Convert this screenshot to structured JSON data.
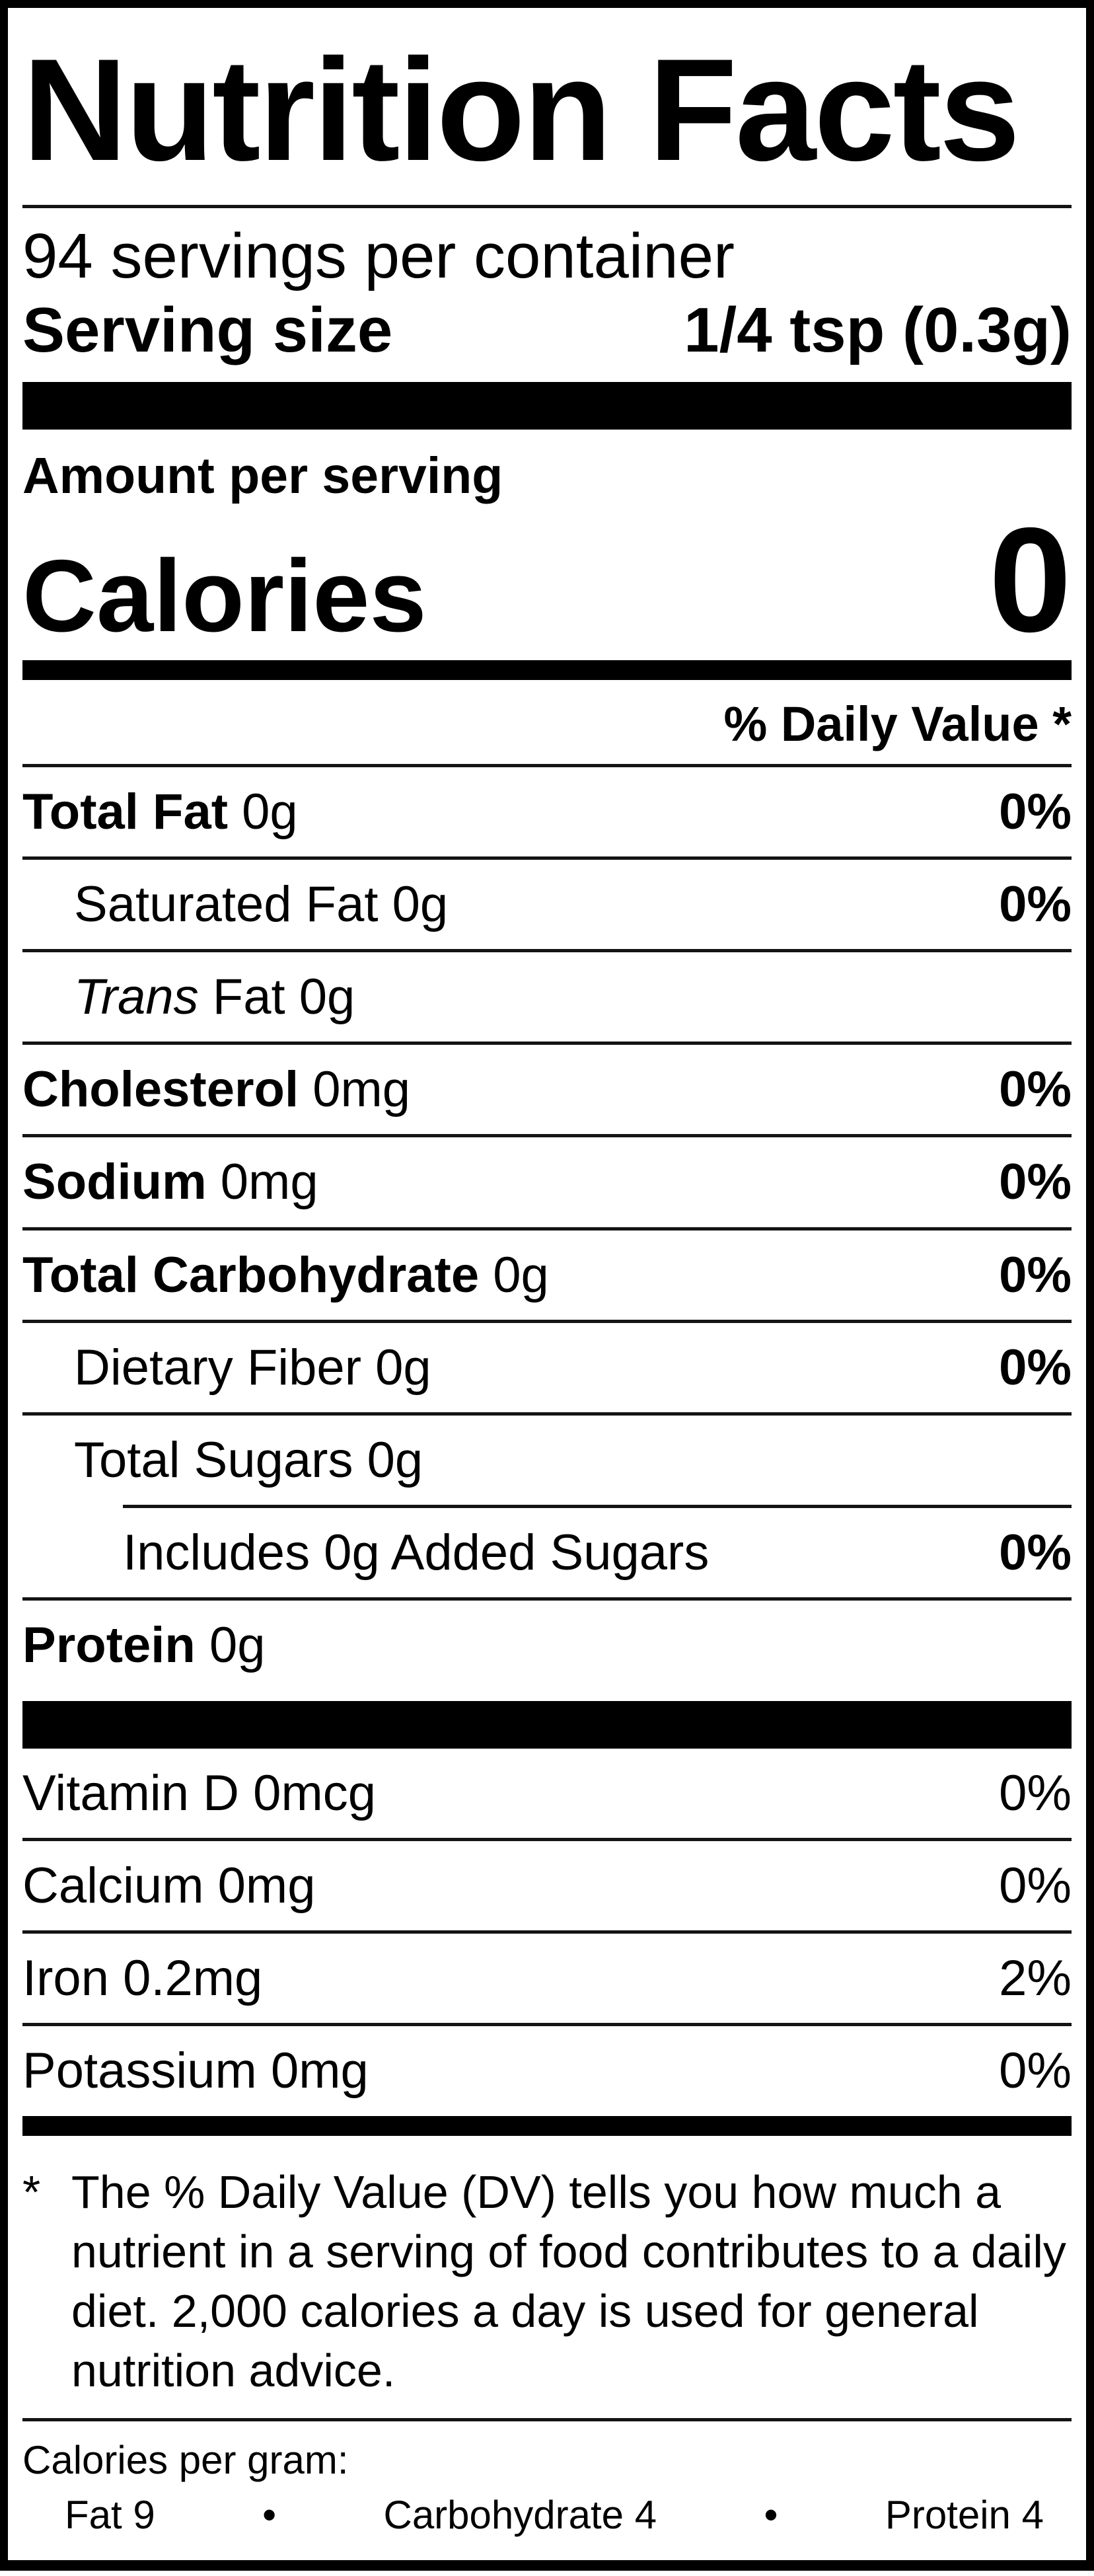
{
  "label": {
    "title": "Nutrition Facts",
    "servings_per_container": "94 servings per container",
    "serving_size": {
      "label": "Serving size",
      "value": "1/4 tsp (0.3g)"
    },
    "amount_per_serving": "Amount per serving",
    "calories": {
      "label": "Calories",
      "value": "0"
    },
    "daily_value_header": "% Daily Value *",
    "nutrients": [
      {
        "name": "Total Fat",
        "amount": "0g",
        "daily_value": "0%"
      },
      {
        "name": "Saturated Fat",
        "amount": "0g",
        "daily_value": "0%"
      },
      {
        "name_italic": "Trans",
        "name": "Fat",
        "amount": "0g",
        "daily_value": ""
      },
      {
        "name": "Cholesterol",
        "amount": "0mg",
        "daily_value": "0%"
      },
      {
        "name": "Sodium",
        "amount": "0mg",
        "daily_value": "0%"
      },
      {
        "name": "Total Carbohydrate",
        "amount": "0g",
        "daily_value": "0%"
      },
      {
        "name": "Dietary Fiber",
        "amount": "0g",
        "daily_value": "0%"
      },
      {
        "name": "Total Sugars",
        "amount": "0g",
        "daily_value": ""
      },
      {
        "name": "Includes 0g Added Sugars",
        "amount": "",
        "daily_value": "0%"
      },
      {
        "name": "Protein",
        "amount": "0g",
        "daily_value": ""
      }
    ],
    "vitamins": [
      {
        "name": "Vitamin D",
        "amount": "0mcg",
        "daily_value": "0%"
      },
      {
        "name": "Calcium",
        "amount": "0mg",
        "daily_value": "0%"
      },
      {
        "name": "Iron",
        "amount": "0.2mg",
        "daily_value": "2%"
      },
      {
        "name": "Potassium",
        "amount": "0mg",
        "daily_value": "0%"
      }
    ],
    "footnote": {
      "marker": "*",
      "text": "The % Daily Value (DV) tells you how much a nutrient in a serving of food contributes to a daily diet. 2,000 calories a day is used for general nutrition advice."
    },
    "calories_per_gram": {
      "label": "Calories per gram:",
      "separator": "•",
      "items": [
        {
          "name": "Fat",
          "value": "9"
        },
        {
          "name": "Carbohydrate",
          "value": "4"
        },
        {
          "name": "Protein",
          "value": "4"
        }
      ]
    }
  }
}
